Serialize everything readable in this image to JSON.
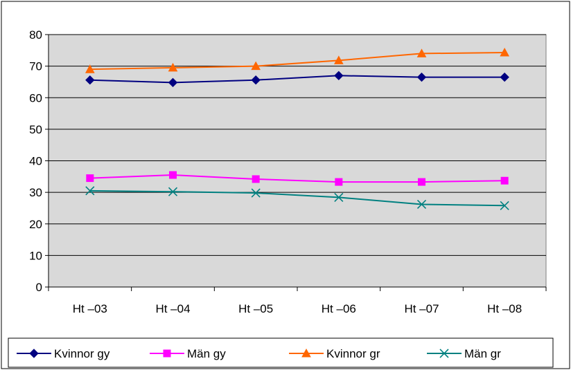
{
  "chart_data": {
    "type": "line",
    "categories": [
      "Ht –03",
      "Ht –04",
      "Ht –05",
      "Ht –06",
      "Ht –07",
      "Ht –08"
    ],
    "ylim": [
      0,
      80
    ],
    "yticks": [
      0,
      10,
      20,
      30,
      40,
      50,
      60,
      70,
      80
    ],
    "grid": true,
    "legend_position": "bottom",
    "plot_background": "#d9d9d9",
    "series": [
      {
        "name": "Kvinnor gy",
        "values": [
          65.6,
          64.8,
          65.6,
          67.0,
          66.5,
          66.5
        ],
        "color": "#000080",
        "marker": "diamond"
      },
      {
        "name": "Män gy",
        "values": [
          34.5,
          35.5,
          34.2,
          33.3,
          33.3,
          33.7
        ],
        "color": "#ff00ff",
        "marker": "square"
      },
      {
        "name": "Kvinnor gr",
        "values": [
          69.0,
          69.5,
          70.0,
          71.8,
          74.0,
          74.3
        ],
        "color": "#ff6600",
        "marker": "triangle"
      },
      {
        "name": "Män gr",
        "values": [
          30.5,
          30.2,
          29.8,
          28.4,
          26.2,
          25.8
        ],
        "color": "#008080",
        "marker": "x"
      }
    ]
  }
}
